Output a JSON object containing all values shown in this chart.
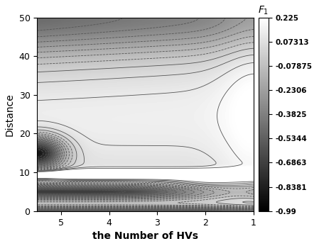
{
  "xlabel": "the Number of HVs",
  "ylabel": "Distance",
  "xmin": 1,
  "xmax": 5.5,
  "ymin": 0,
  "ymax": 50,
  "colorbar_ticks": [
    0.225,
    0.07313,
    -0.07875,
    -0.2306,
    -0.3825,
    -0.5344,
    -0.6863,
    -0.8381,
    -0.99
  ],
  "colorbar_label": "$F_1$",
  "vmin": -0.99,
  "vmax": 0.225,
  "x_ticks": [
    5,
    4,
    3,
    2,
    1
  ],
  "y_ticks": [
    0,
    10,
    20,
    30,
    40,
    50
  ]
}
